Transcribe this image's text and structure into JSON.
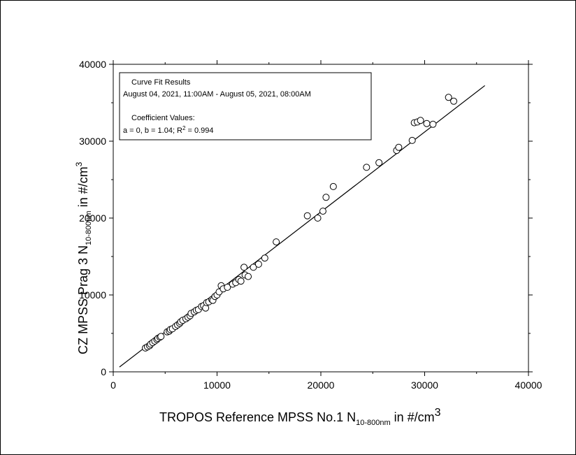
{
  "chart_data": {
    "type": "scatter",
    "title": "",
    "xlabel": {
      "prefix": "TROPOS Reference MPSS No.1 N",
      "subscript": "10-800nm",
      "unit_text": " in #/cm",
      "superscript": "3"
    },
    "ylabel": {
      "prefix": "CZ MPSS Prag 3 N",
      "subscript": "10-800nm",
      "unit_text": " in #/cm",
      "superscript": "3"
    },
    "xlim": [
      0,
      40000
    ],
    "ylim": [
      0,
      40000
    ],
    "xticks": [
      0,
      10000,
      20000,
      30000,
      40000
    ],
    "yticks": [
      0,
      10000,
      20000,
      30000,
      40000
    ],
    "xtick_labels": [
      "0",
      "10000",
      "20000",
      "30000",
      "40000"
    ],
    "ytick_labels": [
      "0",
      "10000",
      "20000",
      "30000",
      "40000"
    ],
    "grid": false,
    "legend_placement": "top-left",
    "annotation": {
      "line1": "Curve Fit Results",
      "line2": "August  04, 2021, 11:00AM - August 05, 2021, 08:00AM",
      "line3": "Coefficient Values:",
      "line4_prefix": "a = 0, b = 1.04; R",
      "line4_sup": "2",
      "line4_suffix": " = 0.994"
    },
    "fit_line": {
      "a": 0,
      "b": 1.04,
      "x_start": 600,
      "x_end": 35800
    },
    "series": [
      {
        "marker": "open-circle",
        "points": [
          [
            3100,
            3100
          ],
          [
            3300,
            3250
          ],
          [
            3500,
            3400
          ],
          [
            3600,
            3600
          ],
          [
            3800,
            3800
          ],
          [
            4000,
            4000
          ],
          [
            4200,
            4200
          ],
          [
            4300,
            4350
          ],
          [
            4500,
            4500
          ],
          [
            4600,
            4600
          ],
          [
            5200,
            5200
          ],
          [
            5400,
            5300
          ],
          [
            5500,
            5500
          ],
          [
            5700,
            5600
          ],
          [
            6000,
            5900
          ],
          [
            6200,
            6100
          ],
          [
            6400,
            6300
          ],
          [
            6500,
            6500
          ],
          [
            6700,
            6700
          ],
          [
            7000,
            6900
          ],
          [
            7200,
            7100
          ],
          [
            7400,
            7300
          ],
          [
            7500,
            7600
          ],
          [
            7800,
            7800
          ],
          [
            8000,
            8000
          ],
          [
            8200,
            8100
          ],
          [
            8500,
            8500
          ],
          [
            8700,
            8600
          ],
          [
            8900,
            8300
          ],
          [
            9000,
            9000
          ],
          [
            9200,
            9100
          ],
          [
            9500,
            9400
          ],
          [
            9600,
            9300
          ],
          [
            9800,
            9800
          ],
          [
            10000,
            10000
          ],
          [
            10200,
            10400
          ],
          [
            10400,
            11200
          ],
          [
            10600,
            10800
          ],
          [
            11000,
            11000
          ],
          [
            11500,
            11400
          ],
          [
            11800,
            11600
          ],
          [
            12100,
            12000
          ],
          [
            12300,
            11800
          ],
          [
            12600,
            13600
          ],
          [
            12700,
            12600
          ],
          [
            13000,
            12400
          ],
          [
            13500,
            13600
          ],
          [
            14000,
            14000
          ],
          [
            14600,
            14800
          ],
          [
            15700,
            16900
          ],
          [
            18700,
            20300
          ],
          [
            19700,
            20000
          ],
          [
            20200,
            20900
          ],
          [
            20500,
            22700
          ],
          [
            21200,
            24100
          ],
          [
            24400,
            26600
          ],
          [
            25600,
            27200
          ],
          [
            27300,
            28800
          ],
          [
            27500,
            29200
          ],
          [
            28800,
            30100
          ],
          [
            29000,
            32400
          ],
          [
            29300,
            32500
          ],
          [
            29600,
            32700
          ],
          [
            30200,
            32300
          ],
          [
            30800,
            32200
          ],
          [
            32300,
            35700
          ],
          [
            32800,
            35200
          ]
        ]
      }
    ]
  }
}
